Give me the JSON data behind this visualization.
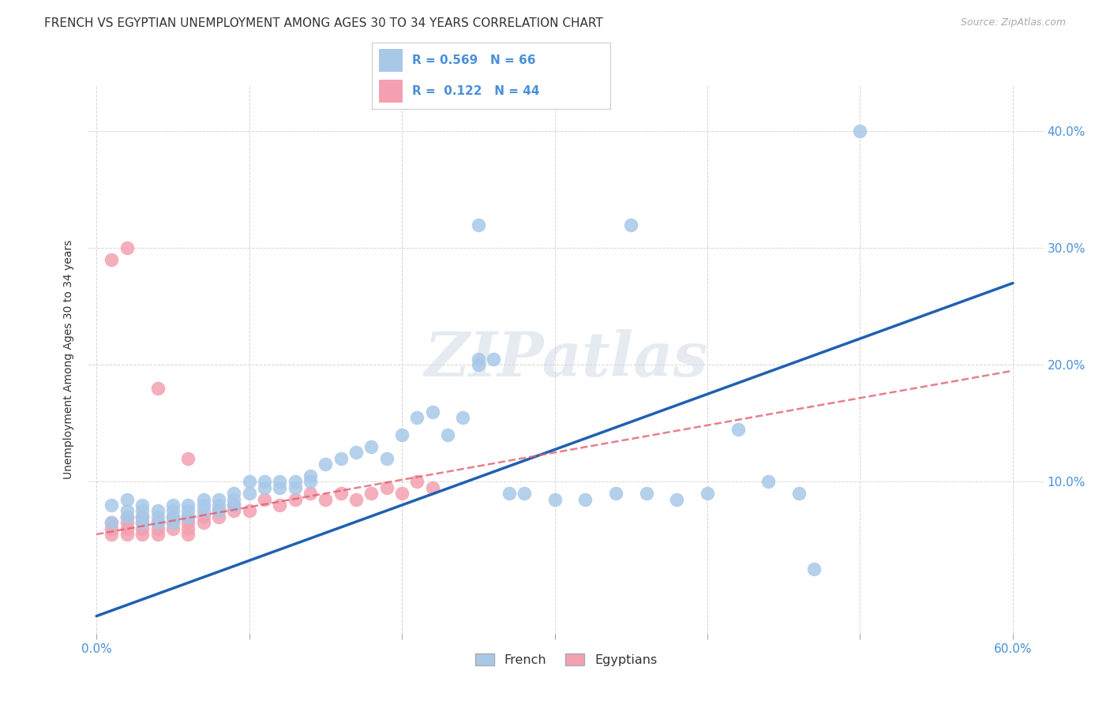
{
  "title": "FRENCH VS EGYPTIAN UNEMPLOYMENT AMONG AGES 30 TO 34 YEARS CORRELATION CHART",
  "source": "Source: ZipAtlas.com",
  "ylabel": "Unemployment Among Ages 30 to 34 years",
  "xlim": [
    -0.005,
    0.62
  ],
  "ylim": [
    -0.03,
    0.44
  ],
  "xticks": [
    0.0,
    0.1,
    0.2,
    0.3,
    0.4,
    0.5,
    0.6
  ],
  "yticks": [
    0.1,
    0.2,
    0.3,
    0.4
  ],
  "xtick_labels": [
    "0.0%",
    "",
    "",
    "",
    "",
    "",
    "60.0%"
  ],
  "ytick_labels_right": [
    "10.0%",
    "20.0%",
    "30.0%",
    "40.0%"
  ],
  "french_R": 0.569,
  "french_N": 66,
  "egyptian_R": 0.122,
  "egyptian_N": 44,
  "french_color": "#a8c8e8",
  "french_line_color": "#2060b0",
  "egyptian_color": "#f4a0b0",
  "egyptian_line_color": "#e06070",
  "background_color": "#ffffff",
  "watermark": "ZIPatlas",
  "title_fontsize": 11,
  "axis_label_fontsize": 10,
  "tick_fontsize": 11,
  "source_fontsize": 9,
  "french_x": [
    0.01,
    0.01,
    0.02,
    0.02,
    0.02,
    0.03,
    0.03,
    0.03,
    0.03,
    0.04,
    0.04,
    0.04,
    0.05,
    0.05,
    0.05,
    0.05,
    0.06,
    0.06,
    0.06,
    0.07,
    0.07,
    0.07,
    0.08,
    0.08,
    0.08,
    0.09,
    0.09,
    0.09,
    0.1,
    0.1,
    0.11,
    0.11,
    0.12,
    0.12,
    0.13,
    0.13,
    0.14,
    0.14,
    0.15,
    0.16,
    0.17,
    0.18,
    0.19,
    0.2,
    0.21,
    0.22,
    0.23,
    0.24,
    0.25,
    0.26,
    0.27,
    0.28,
    0.3,
    0.32,
    0.34,
    0.36,
    0.38,
    0.4,
    0.42,
    0.44,
    0.46,
    0.25,
    0.25,
    0.35,
    0.5,
    0.47
  ],
  "french_y": [
    0.065,
    0.08,
    0.07,
    0.075,
    0.085,
    0.065,
    0.07,
    0.075,
    0.08,
    0.07,
    0.075,
    0.065,
    0.07,
    0.075,
    0.065,
    0.08,
    0.075,
    0.08,
    0.07,
    0.075,
    0.08,
    0.085,
    0.08,
    0.085,
    0.075,
    0.09,
    0.085,
    0.08,
    0.09,
    0.1,
    0.095,
    0.1,
    0.1,
    0.095,
    0.1,
    0.095,
    0.105,
    0.1,
    0.115,
    0.12,
    0.125,
    0.13,
    0.12,
    0.14,
    0.155,
    0.16,
    0.14,
    0.155,
    0.205,
    0.205,
    0.09,
    0.09,
    0.085,
    0.085,
    0.09,
    0.09,
    0.085,
    0.09,
    0.145,
    0.1,
    0.09,
    0.32,
    0.2,
    0.32,
    0.4,
    0.025
  ],
  "egyptian_x": [
    0.01,
    0.01,
    0.01,
    0.02,
    0.02,
    0.02,
    0.02,
    0.03,
    0.03,
    0.03,
    0.03,
    0.04,
    0.04,
    0.04,
    0.05,
    0.05,
    0.05,
    0.06,
    0.06,
    0.06,
    0.06,
    0.07,
    0.07,
    0.08,
    0.08,
    0.09,
    0.09,
    0.1,
    0.11,
    0.12,
    0.13,
    0.14,
    0.15,
    0.16,
    0.17,
    0.18,
    0.19,
    0.2,
    0.21,
    0.22,
    0.02,
    0.04,
    0.06,
    0.01
  ],
  "egyptian_y": [
    0.06,
    0.065,
    0.055,
    0.055,
    0.06,
    0.065,
    0.07,
    0.055,
    0.06,
    0.065,
    0.07,
    0.06,
    0.065,
    0.055,
    0.06,
    0.065,
    0.07,
    0.065,
    0.07,
    0.06,
    0.055,
    0.07,
    0.065,
    0.075,
    0.07,
    0.075,
    0.08,
    0.075,
    0.085,
    0.08,
    0.085,
    0.09,
    0.085,
    0.09,
    0.085,
    0.09,
    0.095,
    0.09,
    0.1,
    0.095,
    0.3,
    0.18,
    0.12,
    0.29
  ],
  "french_line_x": [
    0.0,
    0.6
  ],
  "french_line_y": [
    -0.015,
    0.27
  ],
  "egyptian_line_x": [
    0.0,
    0.6
  ],
  "egyptian_line_y": [
    0.055,
    0.195
  ]
}
